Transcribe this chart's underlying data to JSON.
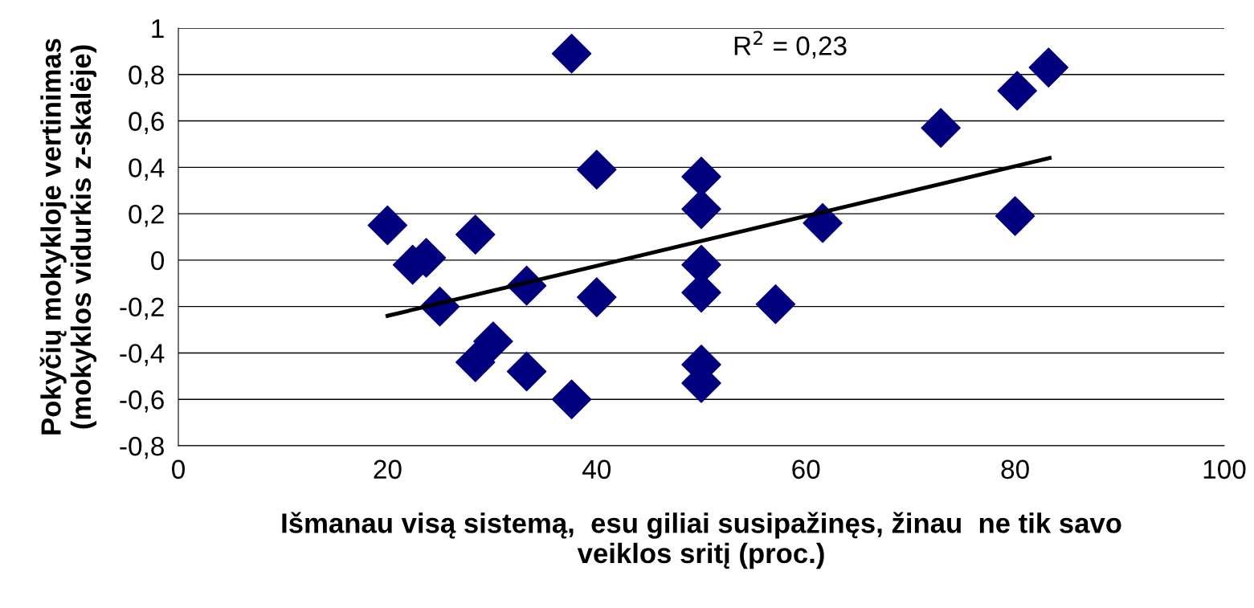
{
  "chart_data": {
    "type": "scatter",
    "xlabel": "Išmanau visą sistemą,  esu giliai susipažinęs, žinau  ne tik savo\nveiklos sritį (proc.)",
    "ylabel": "Pokyčių mokykloje vertinimas\n(mokyklos vidurkis z-skalėje)",
    "annotations": [
      "R$^{2}$ = 0,23"
    ],
    "series": [
      {
        "color": "#00007f",
        "marker": "diamond",
        "x": [
          20,
          22.4,
          23.7,
          25,
          28.4,
          28.4,
          30.1,
          33.3,
          33.3,
          37.6,
          37.6,
          40,
          40,
          50,
          50,
          50,
          50,
          50,
          50,
          57.1,
          61.6,
          72.9,
          80.2,
          80,
          83.2
        ],
        "values": [
          0.15,
          -0.02,
          0.01,
          -0.2,
          0.11,
          -0.44,
          -0.35,
          -0.11,
          -0.48,
          0.89,
          -0.6,
          0.39,
          -0.16,
          0.36,
          0.22,
          -0.02,
          -0.14,
          -0.45,
          -0.53,
          -0.19,
          0.16,
          0.57,
          0.73,
          0.19,
          0.83
        ]
      },
      {
        "type": "line",
        "color": "#000000",
        "marker": "none",
        "x": [
          20,
          83.3
        ],
        "values": [
          -0.24,
          0.44
        ]
      }
    ],
    "xlim": [
      0,
      100
    ],
    "xticks": [
      0,
      20,
      40,
      60,
      80,
      100
    ],
    "ylim": [
      -0.8,
      1
    ],
    "yticks": [
      {
        "value": -0.8,
        "label": "-0,8"
      },
      {
        "value": -0.6,
        "label": "-0,6"
      },
      {
        "value": -0.4,
        "label": "-0,4"
      },
      {
        "value": -0.2,
        "label": "-0,2"
      },
      0,
      {
        "value": 0.2,
        "label": "0,2"
      },
      {
        "value": 0.4,
        "label": "0,4"
      },
      {
        "value": 0.6,
        "label": "0,6"
      },
      {
        "value": 0.8,
        "label": "0,8"
      },
      1
    ],
    "grid": "y",
    "legend": false
  }
}
